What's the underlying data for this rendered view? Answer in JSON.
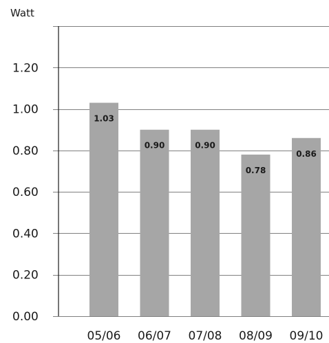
{
  "chart_data": {
    "type": "bar",
    "title": "",
    "xlabel": "",
    "ylabel": "Watt",
    "categories": [
      "05/06",
      "06/07",
      "07/08",
      "08/09",
      "09/10"
    ],
    "values": [
      1.03,
      0.9,
      0.9,
      0.78,
      0.86
    ],
    "value_labels": [
      "1.03",
      "0.90",
      "0.90",
      "0.78",
      "0.86"
    ],
    "ylim": [
      0,
      1.4
    ],
    "yticks": [
      0.0,
      0.2,
      0.4,
      0.6,
      0.8,
      1.0,
      1.2
    ],
    "ytick_labels": [
      "0.00",
      "0.20",
      "0.40",
      "0.60",
      "0.80",
      "1.00",
      "1.20"
    ],
    "grid": true,
    "legend": "none",
    "bar_color": "#a6a6a6",
    "grid_color": "#555555"
  }
}
